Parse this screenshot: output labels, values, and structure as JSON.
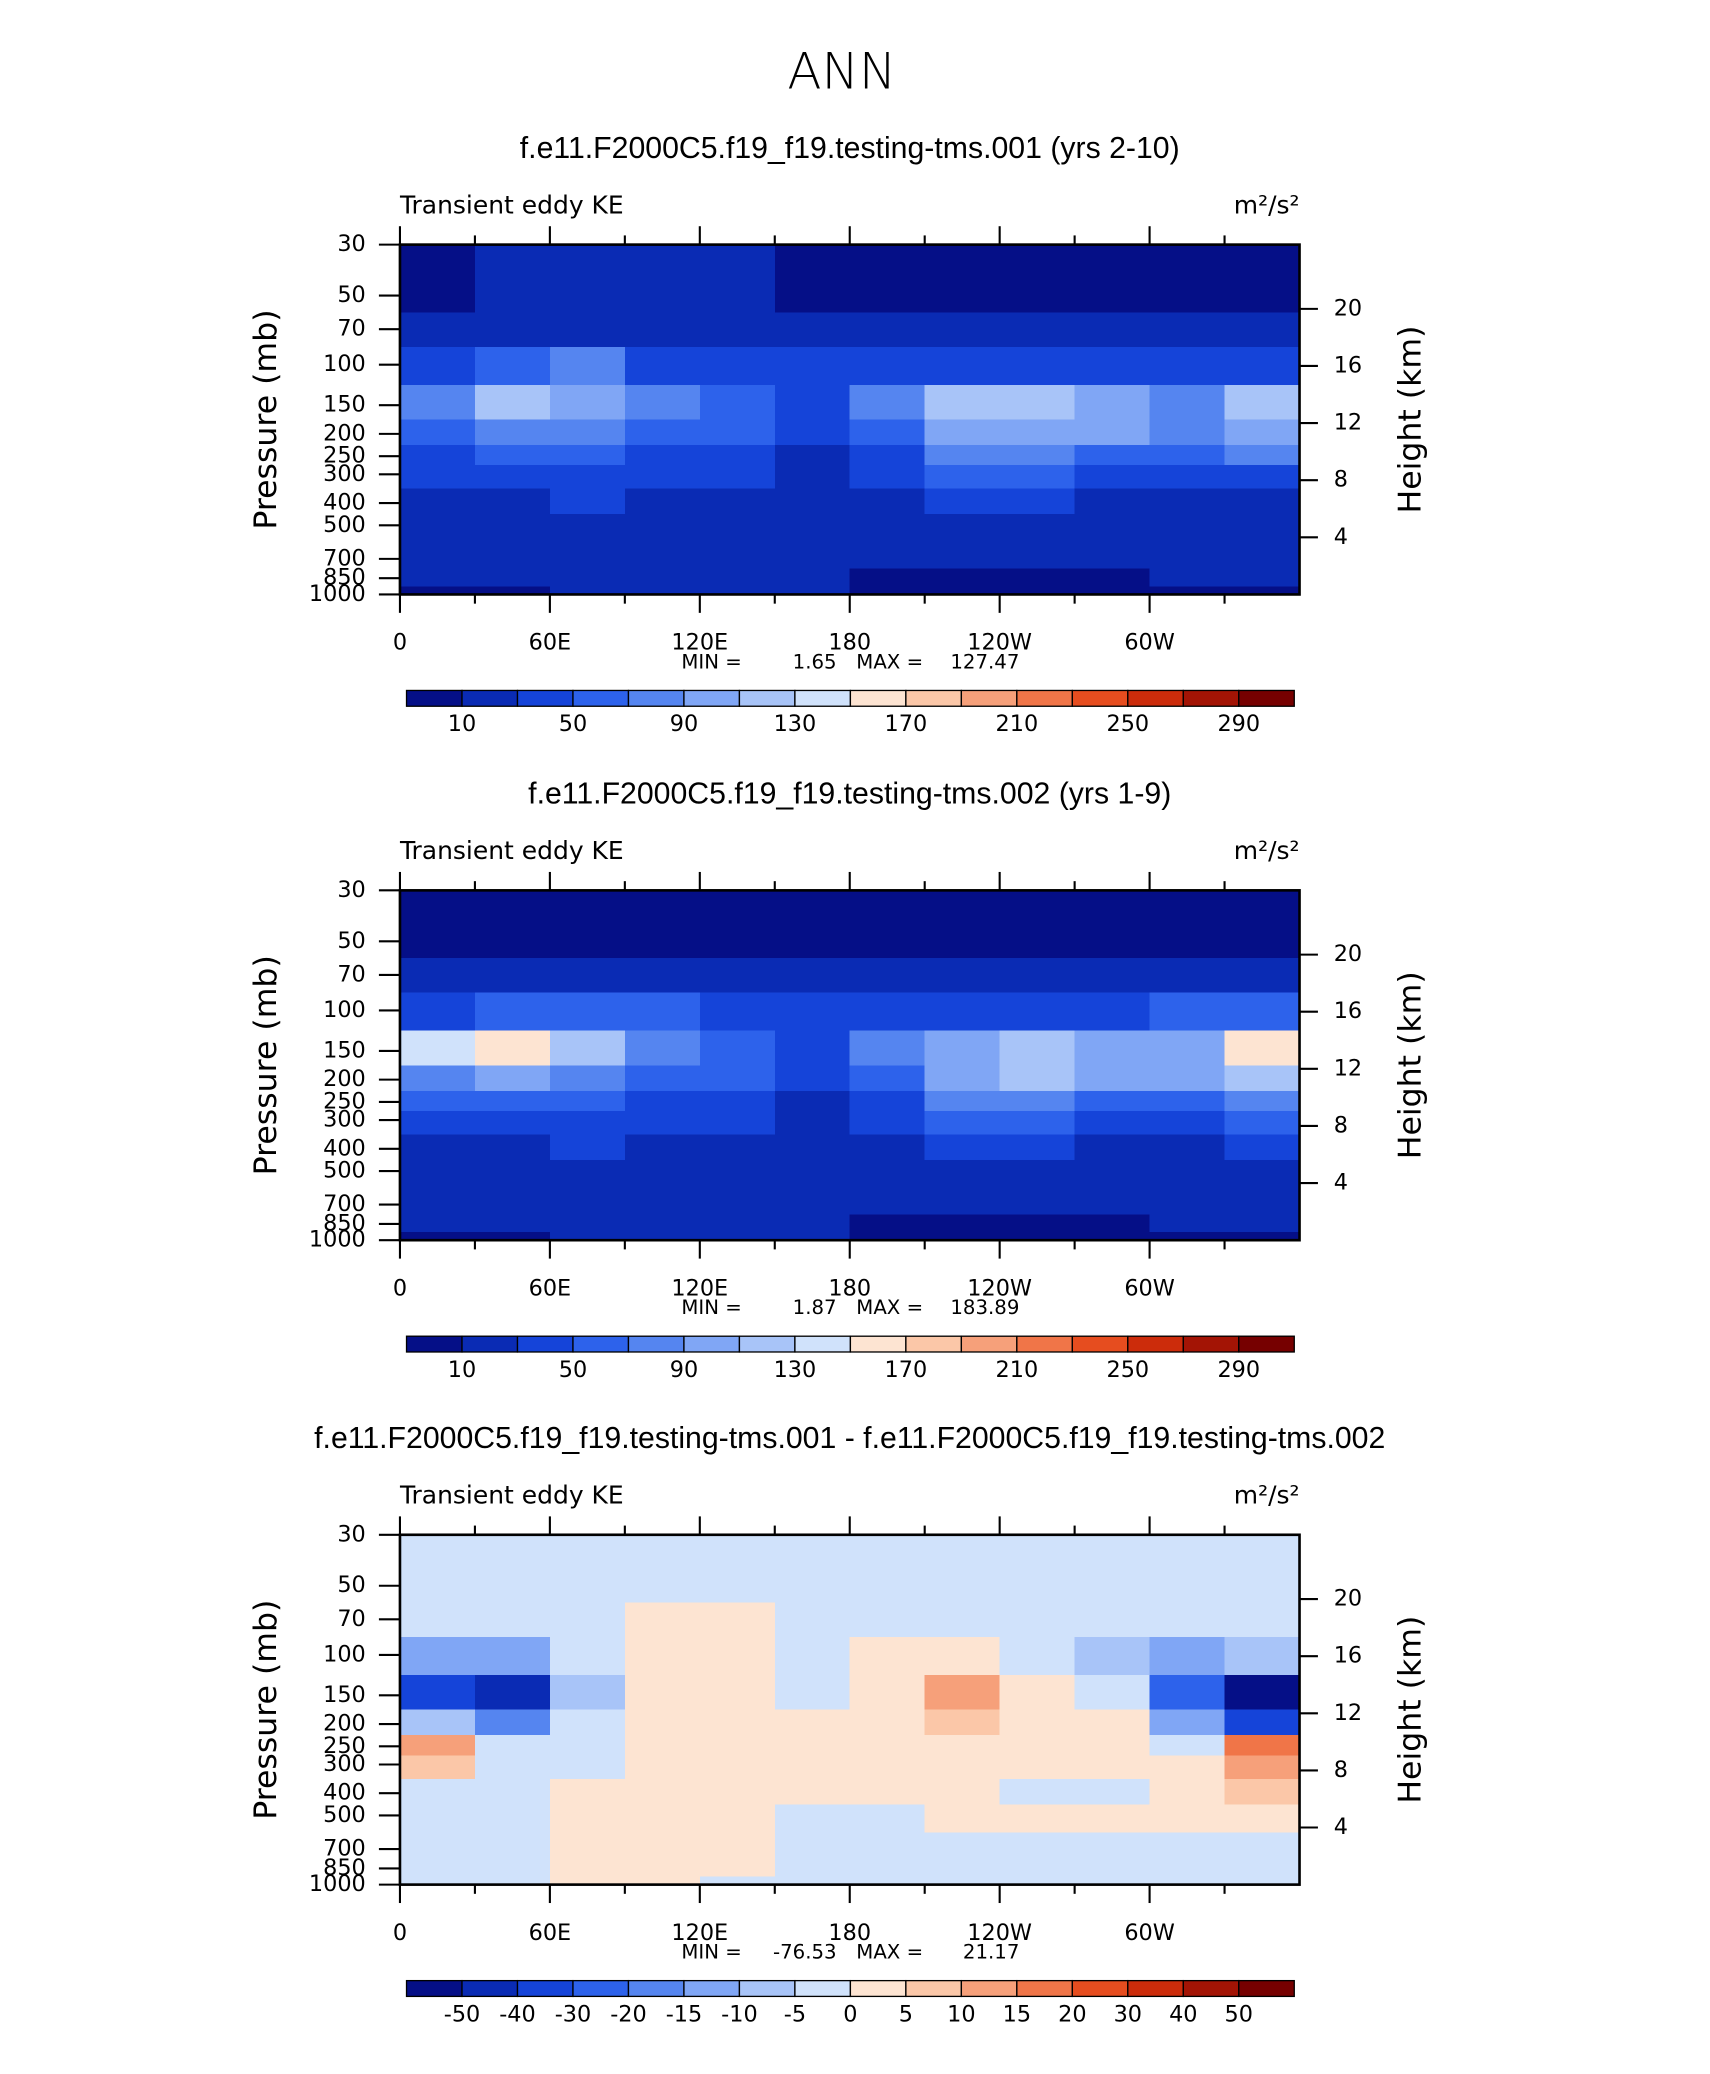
{
  "figure_title": "ANN",
  "chart_data": [
    {
      "type": "contour",
      "title": "f.e11.F2000C5.f19_f19.testing-tms.001 (yrs 2-10)",
      "left_label": "Transient eddy KE",
      "right_label": "m²/s²",
      "ylabel": "Pressure (mb)",
      "y2label": "Height (km)",
      "x": [
        15,
        45,
        75,
        105,
        135,
        165,
        195,
        225,
        255,
        285,
        315,
        345
      ],
      "y": [
        30,
        50,
        70,
        100,
        150,
        200,
        250,
        300,
        400,
        500,
        700,
        850,
        1000
      ],
      "z": [
        [
          8,
          15,
          15,
          15,
          15,
          8,
          6,
          6,
          6,
          6,
          6,
          6
        ],
        [
          9,
          18,
          18,
          18,
          18,
          9,
          8,
          8,
          8,
          8,
          8,
          9
        ],
        [
          20,
          22,
          22,
          22,
          22,
          22,
          20,
          20,
          20,
          20,
          20,
          20
        ],
        [
          40,
          55,
          70,
          45,
          40,
          30,
          35,
          40,
          40,
          40,
          45,
          45
        ],
        [
          70,
          110,
          100,
          70,
          60,
          35,
          70,
          115,
          120,
          95,
          75,
          115
        ],
        [
          60,
          80,
          80,
          60,
          50,
          30,
          60,
          95,
          105,
          90,
          70,
          100
        ],
        [
          45,
          55,
          55,
          45,
          40,
          25,
          45,
          70,
          75,
          65,
          55,
          70
        ],
        [
          30,
          40,
          40,
          35,
          30,
          22,
          30,
          50,
          50,
          45,
          40,
          45
        ],
        [
          25,
          28,
          30,
          25,
          25,
          20,
          22,
          30,
          30,
          28,
          25,
          28
        ],
        [
          22,
          22,
          25,
          22,
          22,
          18,
          15,
          20,
          22,
          20,
          20,
          22
        ],
        [
          18,
          15,
          20,
          20,
          20,
          18,
          10,
          10,
          10,
          10,
          12,
          18
        ],
        [
          10,
          12,
          15,
          18,
          18,
          15,
          8,
          8,
          8,
          8,
          10,
          12
        ],
        [
          8,
          8,
          12,
          15,
          15,
          12,
          6,
          6,
          6,
          6,
          8,
          8
        ]
      ],
      "xlim": [
        0,
        360
      ],
      "xticks": [
        0,
        {
          "value": 60,
          "label": "60E"
        },
        {
          "value": 120,
          "label": "120E"
        },
        180,
        {
          "value": 240,
          "label": "120W"
        },
        {
          "value": 300,
          "label": "60W"
        }
      ],
      "xminorticks": [
        30,
        90,
        150,
        210,
        270,
        330
      ],
      "ylim": [
        1000,
        30
      ],
      "log_y": true,
      "yticks": [
        30,
        50,
        70,
        100,
        150,
        200,
        250,
        300,
        400,
        500,
        700,
        850,
        1000
      ],
      "y2lim": [
        0,
        24.5
      ],
      "y2ticks": [
        4,
        8,
        12,
        16,
        20
      ],
      "levels": [
        10,
        30,
        50,
        70,
        90,
        110,
        130,
        150,
        170,
        190,
        210,
        230,
        250,
        270,
        290
      ],
      "colorbar_label_every": 2,
      "colors": [
        "#050f87",
        "#0a2bb4",
        "#1544d9",
        "#2d62eb",
        "#5585f0",
        "#80a6f5",
        "#a8c4f8",
        "#d0e2fb",
        "#fde4d2",
        "#fbc7a8",
        "#f6a07a",
        "#f07548",
        "#e64d1f",
        "#cc2c0b",
        "#a31405",
        "#760000"
      ],
      "stats": {
        "min_label": "MIN =",
        "min": 1.65,
        "max_label": "MAX =",
        "max": 127.47
      }
    },
    {
      "type": "contour",
      "title": "f.e11.F2000C5.f19_f19.testing-tms.002 (yrs 1-9)",
      "left_label": "Transient eddy KE",
      "right_label": "m²/s²",
      "ylabel": "Pressure (mb)",
      "y2label": "Height (km)",
      "x": [
        15,
        45,
        75,
        105,
        135,
        165,
        195,
        225,
        255,
        285,
        315,
        345
      ],
      "y": [
        30,
        50,
        70,
        100,
        150,
        200,
        250,
        300,
        400,
        500,
        700,
        850,
        1000
      ],
      "z": [
        [
          5,
          5,
          5,
          5,
          5,
          5,
          5,
          5,
          5,
          5,
          5,
          5
        ],
        [
          8,
          8,
          8,
          8,
          8,
          8,
          8,
          8,
          8,
          8,
          8,
          8
        ],
        [
          20,
          20,
          20,
          20,
          20,
          20,
          20,
          20,
          20,
          20,
          20,
          20
        ],
        [
          45,
          55,
          65,
          50,
          45,
          30,
          35,
          45,
          45,
          45,
          50,
          50
        ],
        [
          130,
          160,
          115,
          80,
          65,
          35,
          70,
          100,
          115,
          95,
          100,
          165
        ],
        [
          85,
          100,
          85,
          60,
          50,
          30,
          60,
          100,
          120,
          95,
          90,
          120
        ],
        [
          55,
          60,
          55,
          45,
          40,
          25,
          45,
          75,
          80,
          65,
          60,
          75
        ],
        [
          35,
          40,
          40,
          35,
          30,
          22,
          32,
          50,
          55,
          45,
          40,
          50
        ],
        [
          25,
          28,
          30,
          28,
          25,
          20,
          22,
          30,
          30,
          28,
          25,
          30
        ],
        [
          22,
          22,
          25,
          22,
          22,
          18,
          15,
          20,
          20,
          20,
          20,
          22
        ],
        [
          20,
          15,
          20,
          20,
          20,
          18,
          10,
          10,
          10,
          10,
          12,
          20
        ],
        [
          10,
          12,
          15,
          18,
          18,
          15,
          8,
          8,
          8,
          8,
          10,
          12
        ],
        [
          8,
          8,
          12,
          15,
          15,
          12,
          6,
          6,
          6,
          6,
          8,
          8
        ]
      ],
      "xlim": [
        0,
        360
      ],
      "xticks": [
        0,
        {
          "value": 60,
          "label": "60E"
        },
        {
          "value": 120,
          "label": "120E"
        },
        180,
        {
          "value": 240,
          "label": "120W"
        },
        {
          "value": 300,
          "label": "60W"
        }
      ],
      "xminorticks": [
        30,
        90,
        150,
        210,
        270,
        330
      ],
      "ylim": [
        1000,
        30
      ],
      "log_y": true,
      "yticks": [
        30,
        50,
        70,
        100,
        150,
        200,
        250,
        300,
        400,
        500,
        700,
        850,
        1000
      ],
      "y2lim": [
        0,
        24.5
      ],
      "y2ticks": [
        4,
        8,
        12,
        16,
        20
      ],
      "levels": [
        10,
        30,
        50,
        70,
        90,
        110,
        130,
        150,
        170,
        190,
        210,
        230,
        250,
        270,
        290
      ],
      "colorbar_label_every": 2,
      "colors": [
        "#050f87",
        "#0a2bb4",
        "#1544d9",
        "#2d62eb",
        "#5585f0",
        "#80a6f5",
        "#a8c4f8",
        "#d0e2fb",
        "#fde4d2",
        "#fbc7a8",
        "#f6a07a",
        "#f07548",
        "#e64d1f",
        "#cc2c0b",
        "#a31405",
        "#760000"
      ],
      "stats": {
        "min_label": "MIN =",
        "min": 1.87,
        "max_label": "MAX =",
        "max": 183.89
      }
    },
    {
      "type": "contour",
      "title": "f.e11.F2000C5.f19_f19.testing-tms.001 - f.e11.F2000C5.f19_f19.testing-tms.002",
      "left_label": "Transient eddy KE",
      "right_label": "m²/s²",
      "ylabel": "Pressure (mb)",
      "y2label": "Height (km)",
      "x": [
        15,
        45,
        75,
        105,
        135,
        165,
        195,
        225,
        255,
        285,
        315,
        345
      ],
      "y": [
        30,
        50,
        70,
        100,
        150,
        200,
        250,
        300,
        400,
        500,
        700,
        850,
        1000
      ],
      "z": [
        [
          -2,
          -2,
          -2,
          -2,
          -2,
          -2,
          -2,
          -2,
          -2,
          -2,
          -2,
          -2
        ],
        [
          -2,
          -2,
          -2,
          -2,
          -2,
          -2,
          -2,
          -2,
          -2,
          -2,
          -2,
          -2
        ],
        [
          -2,
          -2,
          -2,
          2,
          2,
          -2,
          -2,
          -2,
          -2,
          -2,
          -2,
          -2
        ],
        [
          -12,
          -15,
          -5,
          3,
          2,
          -2,
          2,
          3,
          -2,
          -8,
          -12,
          -8
        ],
        [
          -40,
          -50,
          -10,
          2,
          3,
          -1,
          4,
          12,
          3,
          -3,
          -30,
          -70
        ],
        [
          -8,
          -18,
          -3,
          2,
          2,
          1,
          4,
          8,
          3,
          1,
          -12,
          -40
        ],
        [
          12,
          -3,
          -2,
          2,
          2,
          1,
          3,
          4,
          2,
          1,
          -3,
          15
        ],
        [
          6,
          -2,
          -1,
          1,
          1,
          1,
          2,
          2,
          1,
          1,
          2,
          12
        ],
        [
          -1,
          -2,
          2,
          1,
          1,
          1,
          1,
          1,
          -1,
          -1,
          3,
          6
        ],
        [
          -1,
          -1,
          2,
          1,
          1,
          -1,
          -1,
          1,
          1,
          2,
          2,
          2
        ],
        [
          -1,
          -1,
          2,
          1,
          1,
          -1,
          -1,
          -1,
          -1,
          -1,
          -1,
          -1
        ],
        [
          -1,
          -3,
          3,
          1,
          1,
          -1,
          -1,
          -1,
          -1,
          -1,
          -1,
          -1
        ],
        [
          -1,
          -2,
          2,
          1,
          -1,
          -1,
          -1,
          -1,
          -1,
          -1,
          -1,
          -1
        ]
      ],
      "xlim": [
        0,
        360
      ],
      "xticks": [
        0,
        {
          "value": 60,
          "label": "60E"
        },
        {
          "value": 120,
          "label": "120E"
        },
        180,
        {
          "value": 240,
          "label": "120W"
        },
        {
          "value": 300,
          "label": "60W"
        }
      ],
      "xminorticks": [
        30,
        90,
        150,
        210,
        270,
        330
      ],
      "ylim": [
        1000,
        30
      ],
      "log_y": true,
      "yticks": [
        30,
        50,
        70,
        100,
        150,
        200,
        250,
        300,
        400,
        500,
        700,
        850,
        1000
      ],
      "y2lim": [
        0,
        24.5
      ],
      "y2ticks": [
        4,
        8,
        12,
        16,
        20
      ],
      "levels": [
        -50,
        -40,
        -30,
        -20,
        -15,
        -10,
        -5,
        0,
        5,
        10,
        15,
        20,
        30,
        40,
        50
      ],
      "colorbar_label_every": 1,
      "colors": [
        "#050f87",
        "#0a2bb4",
        "#1544d9",
        "#2d62eb",
        "#5585f0",
        "#80a6f5",
        "#a8c4f8",
        "#d0e2fb",
        "#fde4d2",
        "#fbc7a8",
        "#f6a07a",
        "#f07548",
        "#e64d1f",
        "#cc2c0b",
        "#a31405",
        "#760000"
      ],
      "stats": {
        "min_label": "MIN =",
        "min": -76.53,
        "max_label": "MAX =",
        "max": 21.17
      }
    }
  ]
}
